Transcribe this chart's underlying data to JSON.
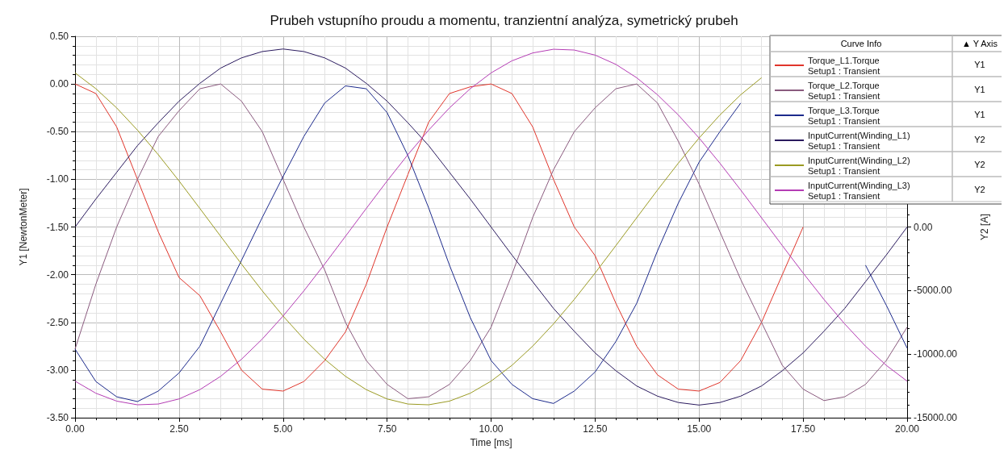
{
  "chart_data": {
    "type": "line",
    "title": "Prubeh vstupního proudu a momentu, tranzientní analýza, symetrický prubeh",
    "xlabel": "Time [ms]",
    "ylabel": "Y1 [NewtonMeter]",
    "y2label": "Y2 [A]",
    "legend_title": "Curve Info",
    "legend": "top right",
    "grid": true,
    "marker": "none",
    "line_style": "solid",
    "annotations": [
      "▲ Y Axis",
      "Y1",
      "Y1",
      "Y1",
      "Y2",
      "Y2",
      "Y2"
    ],
    "x": [
      0,
      0.5,
      1,
      1.5,
      2,
      2.5,
      3,
      3.5,
      4,
      4.5,
      5,
      5.5,
      6,
      6.5,
      7,
      7.5,
      8,
      8.5,
      9,
      9.5,
      10,
      10.5,
      11,
      11.5,
      12,
      12.5,
      13,
      13.5,
      14,
      14.5,
      15,
      15.5,
      16,
      16.5,
      17,
      17.5,
      18,
      18.5,
      19,
      19.5,
      20
    ],
    "xlim": [
      0,
      20
    ],
    "xticks": [
      {
        "value": 0,
        "label": "0.00"
      },
      {
        "value": 2.5,
        "label": "2.50"
      },
      {
        "value": 5,
        "label": "5.00"
      },
      {
        "value": 7.5,
        "label": "7.50"
      },
      {
        "value": 10,
        "label": "10.00"
      },
      {
        "value": 12.5,
        "label": "12.50"
      },
      {
        "value": 15,
        "label": "15.00"
      },
      {
        "value": 17.5,
        "label": "17.50"
      },
      {
        "value": 20,
        "label": "20.00"
      }
    ],
    "ylim": [
      -3.5,
      0.5
    ],
    "yticks": [
      {
        "value": -3.5,
        "label": "-3.50"
      },
      {
        "value": -3,
        "label": "-3.00"
      },
      {
        "value": -2.5,
        "label": "-2.50"
      },
      {
        "value": -2,
        "label": "-2.00"
      },
      {
        "value": -1.5,
        "label": "-1.50"
      },
      {
        "value": -1,
        "label": "-1.00"
      },
      {
        "value": -0.5,
        "label": "-0.50"
      },
      {
        "value": 0,
        "label": "0.00"
      },
      {
        "value": 0.5,
        "label": "0.50"
      }
    ],
    "y2lim": [
      -15000,
      15000
    ],
    "y2ticks": [
      {
        "value": -15000,
        "label": "-15000.00"
      },
      {
        "value": -10000,
        "label": "-10000.00"
      },
      {
        "value": -5000,
        "label": "-5000.00"
      },
      {
        "value": 0,
        "label": "0.00"
      }
    ],
    "series": [
      {
        "name": "Torque_L1.Torque\nSetup1 : Transient",
        "color": "#e0352b",
        "values": [
          0,
          -0.1,
          -0.45,
          -1.0,
          -1.55,
          -2.03,
          -2.22,
          -2.6,
          -3.0,
          -3.2,
          -3.22,
          -3.12,
          -2.9,
          -2.6,
          -2.1,
          -1.5,
          -0.95,
          -0.4,
          -0.1,
          -0.03,
          0,
          -0.1,
          -0.45,
          -1.0,
          -1.5,
          -1.8,
          -2.3,
          -2.75,
          -3.05,
          -3.2,
          -3.22,
          -3.13,
          -2.9,
          -2.5,
          -2.0,
          -1.5,
          null,
          null,
          null,
          null,
          null
        ]
      },
      {
        "name": "Torque_L2.Torque\nSetup1 : Transient",
        "color": "#8a5a7e",
        "values": [
          -2.78,
          -2.1,
          -1.5,
          -1.0,
          -0.55,
          -0.28,
          -0.05,
          0,
          -0.18,
          -0.5,
          -1.0,
          -1.5,
          -1.95,
          -2.5,
          -2.9,
          -3.15,
          -3.3,
          -3.28,
          -3.15,
          -2.9,
          -2.55,
          -2.0,
          -1.4,
          -0.9,
          -0.5,
          -0.25,
          -0.05,
          0,
          -0.2,
          -0.6,
          -1.05,
          -1.55,
          -2.05,
          -2.5,
          -2.95,
          -3.2,
          -3.32,
          -3.28,
          -3.15,
          -2.9,
          -2.55
        ]
      },
      {
        "name": "Torque_L3.Torque\nSetup1 : Transient",
        "color": "#1c2a8c",
        "values": [
          -2.78,
          -3.12,
          -3.28,
          -3.33,
          -3.22,
          -3.03,
          -2.75,
          -2.3,
          -1.85,
          -1.4,
          -0.97,
          -0.55,
          -0.2,
          -0.02,
          -0.05,
          -0.3,
          -0.75,
          -1.3,
          -1.9,
          -2.45,
          -2.9,
          -3.15,
          -3.3,
          -3.35,
          -3.22,
          -3.02,
          -2.7,
          -2.3,
          -1.75,
          -1.25,
          -0.82,
          -0.5,
          -0.2,
          null,
          null,
          null,
          null,
          null,
          -1.9,
          -2.32,
          -2.77
        ]
      },
      {
        "name": "InputCurrent(Winding_L1)\nSetup1 : Transient",
        "color": "#2a1a5e",
        "axis": "y2",
        "values": [
          0,
          2200,
          4300,
          6400,
          8200,
          9900,
          11300,
          12500,
          13300,
          13800,
          14000,
          13800,
          13300,
          12500,
          11300,
          9900,
          8200,
          6400,
          4300,
          2200,
          0,
          -2200,
          -4300,
          -6400,
          -8200,
          -9900,
          -11300,
          -12500,
          -13300,
          -13800,
          -14000,
          -13800,
          -13300,
          -12500,
          -11300,
          -9900,
          -8200,
          -6400,
          -4300,
          -2200,
          0
        ]
      },
      {
        "name": "InputCurrent(Winding_L2)\nSetup1 : Transient",
        "color": "#9a9a22",
        "axis": "y2",
        "values": [
          12120,
          10880,
          9370,
          7620,
          5690,
          3620,
          1460,
          -730,
          -2910,
          -5020,
          -7000,
          -8810,
          -10400,
          -11740,
          -12790,
          -13520,
          -13920,
          -13980,
          -13690,
          -13070,
          -12120,
          -10880,
          -9370,
          -7620,
          -5690,
          -3620,
          -1460,
          730,
          2910,
          5020,
          7000,
          8810,
          10400,
          11740,
          null,
          null,
          null,
          null,
          null,
          null,
          null
        ]
      },
      {
        "name": "InputCurrent(Winding_L3)\nSetup1 : Transient",
        "color": "#b43cb4",
        "axis": "y2",
        "values": [
          -12120,
          -13070,
          -13690,
          -13980,
          -13920,
          -13520,
          -12790,
          -11740,
          -10400,
          -8810,
          -7000,
          -5020,
          -2910,
          -730,
          1460,
          3620,
          5690,
          7620,
          9370,
          10880,
          12120,
          13070,
          13690,
          13980,
          13920,
          13520,
          12790,
          11740,
          10400,
          8810,
          7000,
          5020,
          2910,
          730,
          -1460,
          -3620,
          -5690,
          -7620,
          -9370,
          -10880,
          -12120
        ]
      }
    ]
  }
}
